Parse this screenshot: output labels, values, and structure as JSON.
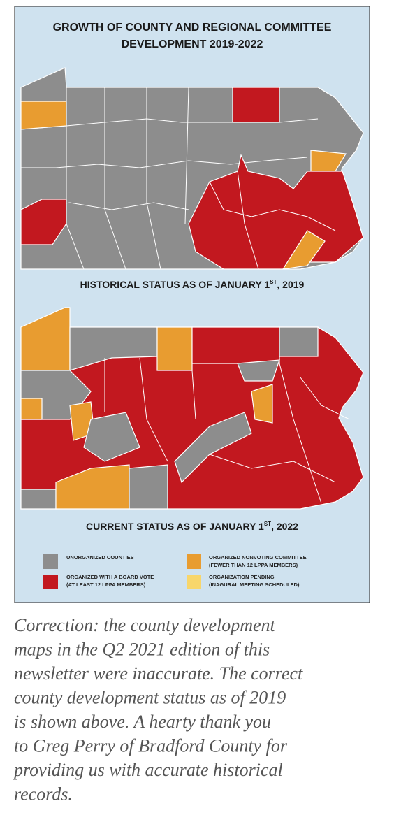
{
  "header": {
    "title_lines": [
      "GROWTH OF COUNTY AND REGIONAL COMMITTEE",
      "DEVELOPMENT 2019-2022"
    ]
  },
  "maps": [
    {
      "caption": {
        "text": "HISTORICAL STATUS AS OF JANUARY 1",
        "sup": "ST",
        "tail": ", 2019"
      }
    },
    {
      "caption": {
        "text": "CURRENT STATUS AS OF JANUARY 1",
        "sup": "ST",
        "tail": ", 2022"
      }
    }
  ],
  "legend": [
    {
      "label": "UNORGANIZED COUNTIES"
    },
    {
      "label": "ORGANIZED WITH A BOARD VOTE",
      "note": "(AT LEAST 12 LPPA MEMBERS)"
    },
    {
      "label": "ORGANIZED NONVOTING COMMITTEE",
      "note": "(FEWER THAN 12 LPPA MEMBERS)"
    },
    {
      "label": "ORGANIZATION PENDING",
      "note": "(INAGURAL MEETING SCHEDULED)"
    }
  ],
  "caption_lines": [
    "Correction: the county development",
    "maps in the Q2 2021 edition of this",
    "newsletter were inaccurate. The correct",
    "county development status as of 2019",
    "is shown above. A hearty thank you",
    "to Greg Perry of Bradford County for",
    "providing us with accurate historical",
    "records."
  ]
}
